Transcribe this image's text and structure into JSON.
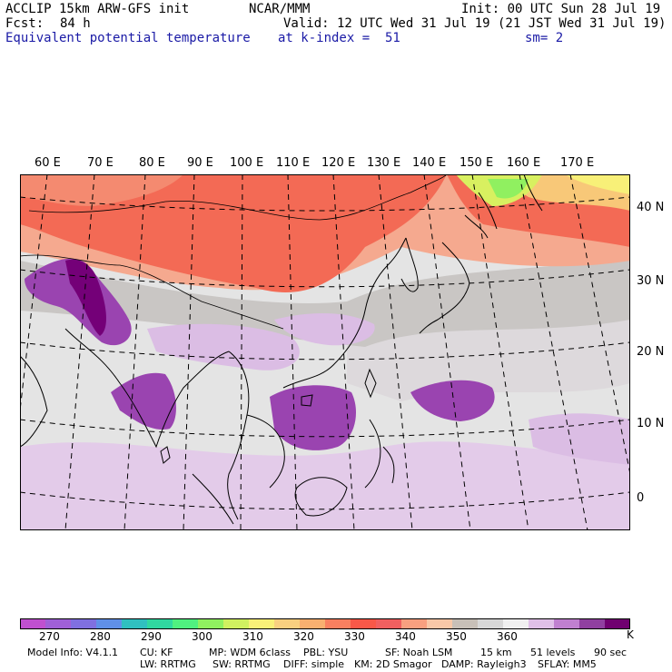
{
  "header": {
    "model": "ACCLIP 15km ARW-GFS init",
    "org": "NCAR/MMM",
    "init": "Init: 00 UTC Sun 28 Jul 19",
    "fcst_label": "Fcst:",
    "fcst_value": "84 h",
    "valid": "Valid: 12 UTC Wed 31 Jul 19 (21 JST Wed 31 Jul 19)",
    "field": "Equivalent potential temperature",
    "level": "at k-index =  51",
    "smoothing": "sm= 2"
  },
  "map": {
    "lon_labels": [
      "60 E",
      "70 E",
      "80 E",
      "90 E",
      "100 E",
      "110 E",
      "120 E",
      "130 E",
      "140 E",
      "150 E",
      "160 E",
      "170 E"
    ],
    "lat_labels": [
      "40 N",
      "30 N",
      "20 N",
      "10 N",
      "0"
    ]
  },
  "colorbar": {
    "colors": [
      "#c050d0",
      "#a060d8",
      "#8070e0",
      "#6090e8",
      "#30c0c0",
      "#30d8a0",
      "#50f080",
      "#90f060",
      "#d0f060",
      "#f8f078",
      "#f8d080",
      "#f8b070",
      "#f88060",
      "#f85848",
      "#f06060",
      "#f8a080",
      "#f8c8a8",
      "#c8c0b8",
      "#d8d8d8",
      "#f0f0f0",
      "#e0c0e8",
      "#c080d0",
      "#9040a0",
      "#700070"
    ],
    "tick_labels": [
      "270",
      "280",
      "290",
      "300",
      "310",
      "320",
      "330",
      "340",
      "350",
      "360"
    ],
    "unit": "K"
  },
  "footer": {
    "line1": [
      "Model Info: V4.1.1",
      "CU: KF",
      "MP: WDM 6class",
      "PBL: YSU",
      "SF: Noah LSM",
      "15 km",
      "51 levels",
      "90 sec"
    ],
    "line2": [
      "LW: RRTMG",
      "SW: RRTMG",
      "DIFF: simple",
      "KM: 2D Smagor",
      "DAMP: Rayleigh3",
      "SFLAY: MM5"
    ]
  }
}
